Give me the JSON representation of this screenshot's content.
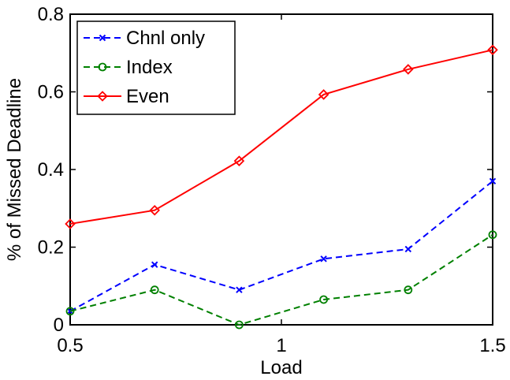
{
  "chart_data": {
    "type": "line",
    "title": "",
    "xlabel": "Load",
    "ylabel": "% of Missed Deadline",
    "xlim": [
      0.5,
      1.5
    ],
    "ylim": [
      0,
      0.8
    ],
    "xticks": [
      0.5,
      1,
      1.5
    ],
    "xtick_labels": [
      "0.5",
      "1",
      "1.5"
    ],
    "yticks": [
      0,
      0.2,
      0.4,
      0.6,
      0.8
    ],
    "ytick_labels": [
      "0",
      "0.2",
      "0.4",
      "0.6",
      "0.8"
    ],
    "grid": false,
    "legend_position": "top-left",
    "x": [
      0.5,
      0.7,
      0.9,
      1.1,
      1.3,
      1.5
    ],
    "series": [
      {
        "name": "Chnl only",
        "values": [
          0.035,
          0.155,
          0.09,
          0.17,
          0.195,
          0.37
        ],
        "color": "#0000ff",
        "line_style": "dashed",
        "marker": "x"
      },
      {
        "name": "Index",
        "values": [
          0.035,
          0.09,
          0.0,
          0.065,
          0.09,
          0.232
        ],
        "color": "#008000",
        "line_style": "dashed",
        "marker": "circle"
      },
      {
        "name": "Even",
        "values": [
          0.26,
          0.295,
          0.422,
          0.593,
          0.658,
          0.708
        ],
        "color": "#ff0000",
        "line_style": "solid",
        "marker": "diamond"
      }
    ]
  }
}
